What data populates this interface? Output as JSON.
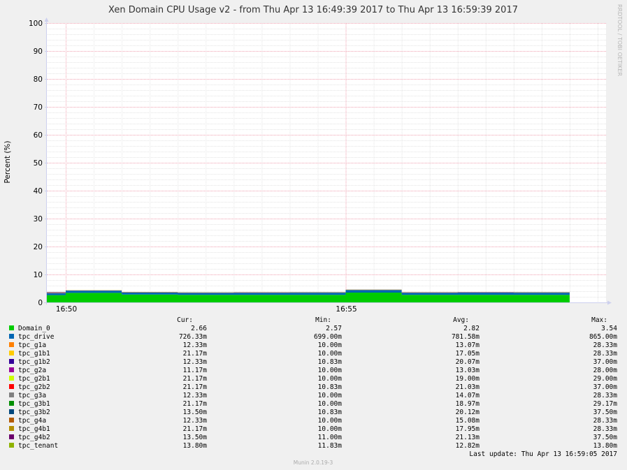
{
  "title": "Xen Domain CPU Usage v2 - from Thu Apr 13 16:49:39 2017 to Thu Apr 13 16:59:39 2017",
  "credit": "RRDTOOL / TOBI OETIKER",
  "footer": "Munin 2.0.19-3",
  "legend_headers": {
    "cur": "Cur:",
    "min": "Min:",
    "avg": "Avg:",
    "max": "Max:"
  },
  "last_update": "Last update:  Thu Apr 13 16:59:05 2017",
  "chart_data": {
    "type": "area",
    "ylabel": "Percent (%)",
    "ylim": [
      0,
      100
    ],
    "yticks": [
      0,
      10,
      20,
      30,
      40,
      50,
      60,
      70,
      80,
      90,
      100
    ],
    "xlabels": [
      "16:50",
      "16:55"
    ],
    "xlim": [
      "16:49:39",
      "16:59:39"
    ],
    "x": [
      "16:49:39",
      "16:50:00",
      "16:51:00",
      "16:52:00",
      "16:53:00",
      "16:54:00",
      "16:55:00",
      "16:56:00",
      "16:57:00",
      "16:58:00",
      "16:59:00"
    ],
    "grid": true,
    "series": [
      {
        "name": "Domain_0",
        "color": "#00cc00",
        "values": [
          2.6,
          3.4,
          2.8,
          2.7,
          2.7,
          2.7,
          3.5,
          2.7,
          2.7,
          2.7,
          2.66
        ],
        "cur": "2.66",
        "min": "2.57",
        "avg": "2.82",
        "max": "3.54"
      },
      {
        "name": "tpc_drive",
        "color": "#0066b3",
        "values": [
          0.7,
          0.8,
          0.72,
          0.7,
          0.75,
          0.78,
          0.86,
          0.75,
          0.8,
          0.78,
          0.726
        ],
        "cur": "726.33m",
        "min": "699.00m",
        "avg": "781.58m",
        "max": "865.00m"
      },
      {
        "name": "tpc_g1a",
        "color": "#ff8000",
        "values": [
          0.028,
          0.01,
          0.01,
          0.01,
          0.01,
          0.01,
          0.012,
          0.01,
          0.01,
          0.01,
          0.012
        ],
        "cur": "12.33m",
        "min": "10.00m",
        "avg": "13.07m",
        "max": "28.33m"
      },
      {
        "name": "tpc_g1b1",
        "color": "#ffcc00",
        "values": [
          0.028,
          0.012,
          0.015,
          0.015,
          0.015,
          0.015,
          0.015,
          0.015,
          0.015,
          0.015,
          0.021
        ],
        "cur": "21.17m",
        "min": "10.00m",
        "avg": "17.05m",
        "max": "28.33m"
      },
      {
        "name": "tpc_g1b2",
        "color": "#330099",
        "values": [
          0.037,
          0.015,
          0.02,
          0.02,
          0.02,
          0.02,
          0.02,
          0.02,
          0.02,
          0.02,
          0.012
        ],
        "cur": "12.33m",
        "min": "10.83m",
        "avg": "20.07m",
        "max": "37.00m"
      },
      {
        "name": "tpc_g2a",
        "color": "#990099",
        "values": [
          0.028,
          0.01,
          0.012,
          0.012,
          0.012,
          0.012,
          0.012,
          0.012,
          0.012,
          0.012,
          0.011
        ],
        "cur": "11.17m",
        "min": "10.00m",
        "avg": "13.03m",
        "max": "28.00m"
      },
      {
        "name": "tpc_g2b1",
        "color": "#ccff00",
        "values": [
          0.029,
          0.015,
          0.019,
          0.019,
          0.019,
          0.019,
          0.019,
          0.019,
          0.019,
          0.019,
          0.021
        ],
        "cur": "21.17m",
        "min": "10.00m",
        "avg": "19.00m",
        "max": "29.00m"
      },
      {
        "name": "tpc_g2b2",
        "color": "#ff0000",
        "values": [
          0.037,
          0.015,
          0.021,
          0.021,
          0.021,
          0.021,
          0.021,
          0.021,
          0.021,
          0.021,
          0.021
        ],
        "cur": "21.17m",
        "min": "10.83m",
        "avg": "21.03m",
        "max": "37.00m"
      },
      {
        "name": "tpc_g3a",
        "color": "#808080",
        "values": [
          0.028,
          0.01,
          0.014,
          0.014,
          0.014,
          0.014,
          0.014,
          0.014,
          0.014,
          0.014,
          0.012
        ],
        "cur": "12.33m",
        "min": "10.00m",
        "avg": "14.07m",
        "max": "28.33m"
      },
      {
        "name": "tpc_g3b1",
        "color": "#008f00",
        "values": [
          0.029,
          0.015,
          0.019,
          0.019,
          0.019,
          0.019,
          0.019,
          0.019,
          0.019,
          0.019,
          0.021
        ],
        "cur": "21.17m",
        "min": "10.00m",
        "avg": "18.97m",
        "max": "29.17m"
      },
      {
        "name": "tpc_g3b2",
        "color": "#00487d",
        "values": [
          0.037,
          0.015,
          0.02,
          0.02,
          0.02,
          0.02,
          0.02,
          0.02,
          0.02,
          0.02,
          0.013
        ],
        "cur": "13.50m",
        "min": "10.83m",
        "avg": "20.12m",
        "max": "37.50m"
      },
      {
        "name": "tpc_g4a",
        "color": "#b35a00",
        "values": [
          0.028,
          0.01,
          0.015,
          0.015,
          0.015,
          0.015,
          0.015,
          0.015,
          0.015,
          0.015,
          0.012
        ],
        "cur": "12.33m",
        "min": "10.00m",
        "avg": "15.08m",
        "max": "28.33m"
      },
      {
        "name": "tpc_g4b1",
        "color": "#b38f00",
        "values": [
          0.028,
          0.012,
          0.018,
          0.018,
          0.018,
          0.018,
          0.018,
          0.018,
          0.018,
          0.018,
          0.021
        ],
        "cur": "21.17m",
        "min": "10.00m",
        "avg": "17.95m",
        "max": "28.33m"
      },
      {
        "name": "tpc_g4b2",
        "color": "#6b006b",
        "values": [
          0.037,
          0.015,
          0.021,
          0.021,
          0.021,
          0.021,
          0.021,
          0.021,
          0.035,
          0.021,
          0.013
        ],
        "cur": "13.50m",
        "min": "11.00m",
        "avg": "21.13m",
        "max": "37.50m"
      },
      {
        "name": "tpc_tenant",
        "color": "#8fb300",
        "values": [
          0.013,
          0.012,
          0.013,
          0.013,
          0.013,
          0.013,
          0.013,
          0.013,
          0.013,
          0.013,
          0.014
        ],
        "cur": "13.80m",
        "min": "11.83m",
        "avg": "12.82m",
        "max": "13.80m"
      }
    ]
  }
}
